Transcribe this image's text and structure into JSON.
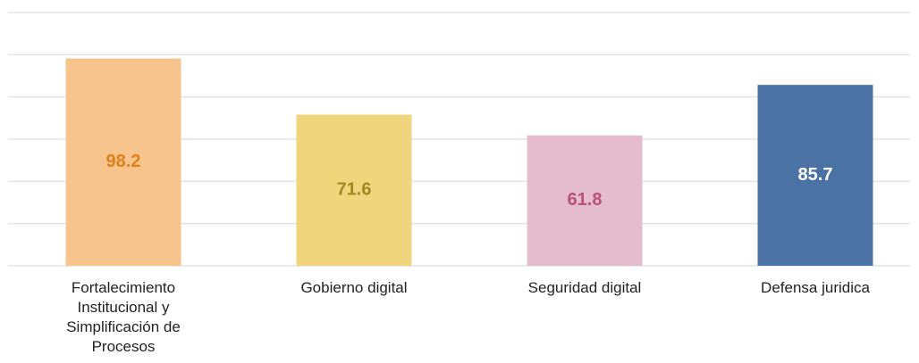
{
  "chart_data": {
    "type": "bar",
    "categories": [
      "Fortalecimiento Institucional y Simplificación de Procesos",
      "Gobierno digital",
      "Seguridad digital",
      "Defensa juridica"
    ],
    "values": [
      98.2,
      71.6,
      61.8,
      85.7
    ],
    "colors": [
      "#f7c48e",
      "#f0d57c",
      "#e4bccb",
      "#4a72a4"
    ],
    "label_colors": [
      "#e0801c",
      "#9e8a20",
      "#b8507a",
      "#ffffff"
    ],
    "ylim": [
      0,
      120
    ],
    "yticks": [
      0,
      20,
      40,
      60,
      80,
      100,
      120
    ],
    "grid": true
  }
}
